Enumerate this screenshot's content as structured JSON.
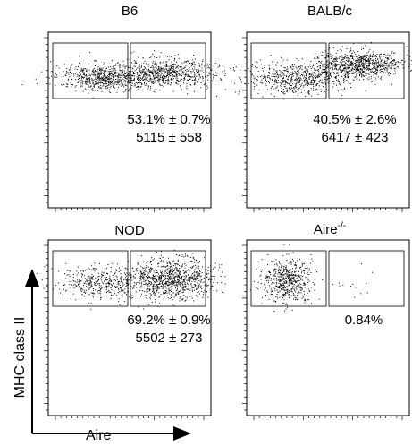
{
  "panels": [
    {
      "title": "B6",
      "stat_pct": "53.1% ± 0.7%",
      "stat_n": "5115 ± 558",
      "density": "mixed",
      "gates": 2
    },
    {
      "title": "BALB/c",
      "stat_pct": "40.5% ± 2.6%",
      "stat_n": "6417 ± 423",
      "density": "mixed-high",
      "gates": 2
    },
    {
      "title": "NOD",
      "stat_pct": "69.2% ± 0.9%",
      "stat_n": "5502 ± 273",
      "density": "right-heavy",
      "gates": 2
    },
    {
      "title_base": "Aire",
      "title_sup": "-/-",
      "stat_pct": "0.84%",
      "stat_n": "",
      "density": "left-only",
      "gates": 2
    }
  ],
  "axes": {
    "x_label": "Aire",
    "y_label": "MHC class II"
  },
  "colors": {
    "dots": "#000000",
    "frame": "#000000"
  }
}
